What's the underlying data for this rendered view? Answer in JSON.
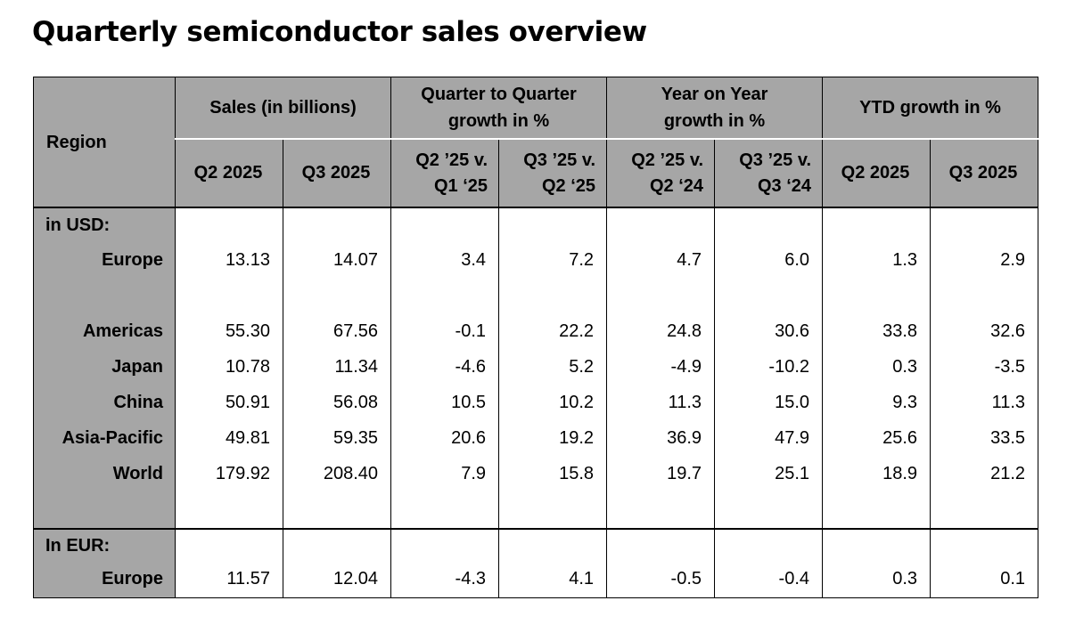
{
  "title": "Quarterly semiconductor sales overview",
  "header": {
    "region": "Region",
    "groups": [
      {
        "label": "Sales (in billions)",
        "sub": [
          "Q2 2025",
          "Q3 2025"
        ]
      },
      {
        "label": "Quarter to Quarter growth in %",
        "sub": [
          "Q2 ’25 v. Q1 ‘25",
          "Q3 ’25 v. Q2 ‘25"
        ]
      },
      {
        "label": "Year on Year growth in %",
        "sub": [
          "Q2 ’25 v. Q2 ‘24",
          "Q3 ’25 v. Q3 ‘24"
        ]
      },
      {
        "label": "YTD growth in %",
        "sub": [
          "Q2 2025",
          "Q3 2025"
        ]
      }
    ]
  },
  "sections": {
    "usd": {
      "label": "in USD:",
      "rows": [
        {
          "region": "Europe",
          "values": [
            "13.13",
            "14.07",
            "3.4",
            "7.2",
            "4.7",
            "6.0",
            "1.3",
            "2.9"
          ]
        },
        {
          "region": "Americas",
          "values": [
            "55.30",
            "67.56",
            "-0.1",
            "22.2",
            "24.8",
            "30.6",
            "33.8",
            "32.6"
          ]
        },
        {
          "region": "Japan",
          "values": [
            "10.78",
            "11.34",
            "-4.6",
            "5.2",
            "-4.9",
            "-10.2",
            "0.3",
            "-3.5"
          ]
        },
        {
          "region": "China",
          "values": [
            "50.91",
            "56.08",
            "10.5",
            "10.2",
            "11.3",
            "15.0",
            "9.3",
            "11.3"
          ]
        },
        {
          "region": "Asia-Pacific",
          "values": [
            "49.81",
            "59.35",
            "20.6",
            "19.2",
            "36.9",
            "47.9",
            "25.6",
            "33.5"
          ]
        },
        {
          "region": "World",
          "values": [
            "179.92",
            "208.40",
            "7.9",
            "15.8",
            "19.7",
            "25.1",
            "18.9",
            "21.2"
          ]
        }
      ]
    },
    "eur": {
      "label": "In EUR:",
      "rows": [
        {
          "region": "Europe",
          "values": [
            "11.57",
            "12.04",
            "-4.3",
            "4.1",
            "-0.5",
            "-0.4",
            "0.3",
            "0.1"
          ]
        }
      ]
    }
  },
  "colors": {
    "header_bg": "#a6a6a6",
    "border": "#000000",
    "background": "#ffffff"
  }
}
